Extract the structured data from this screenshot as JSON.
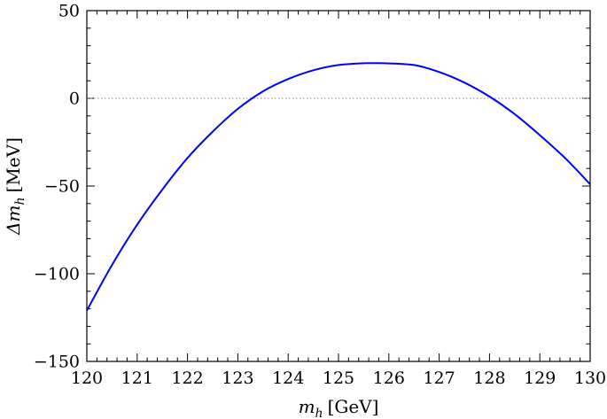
{
  "chart_data": {
    "type": "line",
    "title": "",
    "xlabel": {
      "var": "m",
      "sub": "h",
      "unit": "[GeV]"
    },
    "ylabel": {
      "var": "Δm",
      "sub": "h",
      "unit": "[MeV]"
    },
    "xlim": [
      120,
      130
    ],
    "ylim": [
      -150,
      50
    ],
    "x_ticks": [
      120,
      121,
      122,
      123,
      124,
      125,
      126,
      127,
      128,
      129,
      130
    ],
    "y_ticks": [
      -150,
      -100,
      -50,
      0,
      50
    ],
    "y_tick_labels": [
      "−150",
      "−100",
      "−50",
      "0",
      "50"
    ],
    "reference_line": {
      "y": 0,
      "style": "dotted",
      "color": "#888888"
    },
    "series": [
      {
        "color": "#0000ff",
        "x": [
          120,
          120.5,
          121,
          121.5,
          122,
          122.5,
          123,
          123.5,
          124,
          124.5,
          125,
          125.5,
          125.9,
          126.5,
          127,
          127.5,
          128,
          128.5,
          129,
          129.5,
          130
        ],
        "y": [
          -121,
          -95,
          -72,
          -52,
          -34,
          -19,
          -6,
          4,
          11,
          16,
          19,
          20,
          20,
          19,
          15,
          9,
          1,
          -9,
          -21,
          -34,
          -49
        ]
      }
    ],
    "grid": false,
    "legend": "none"
  }
}
